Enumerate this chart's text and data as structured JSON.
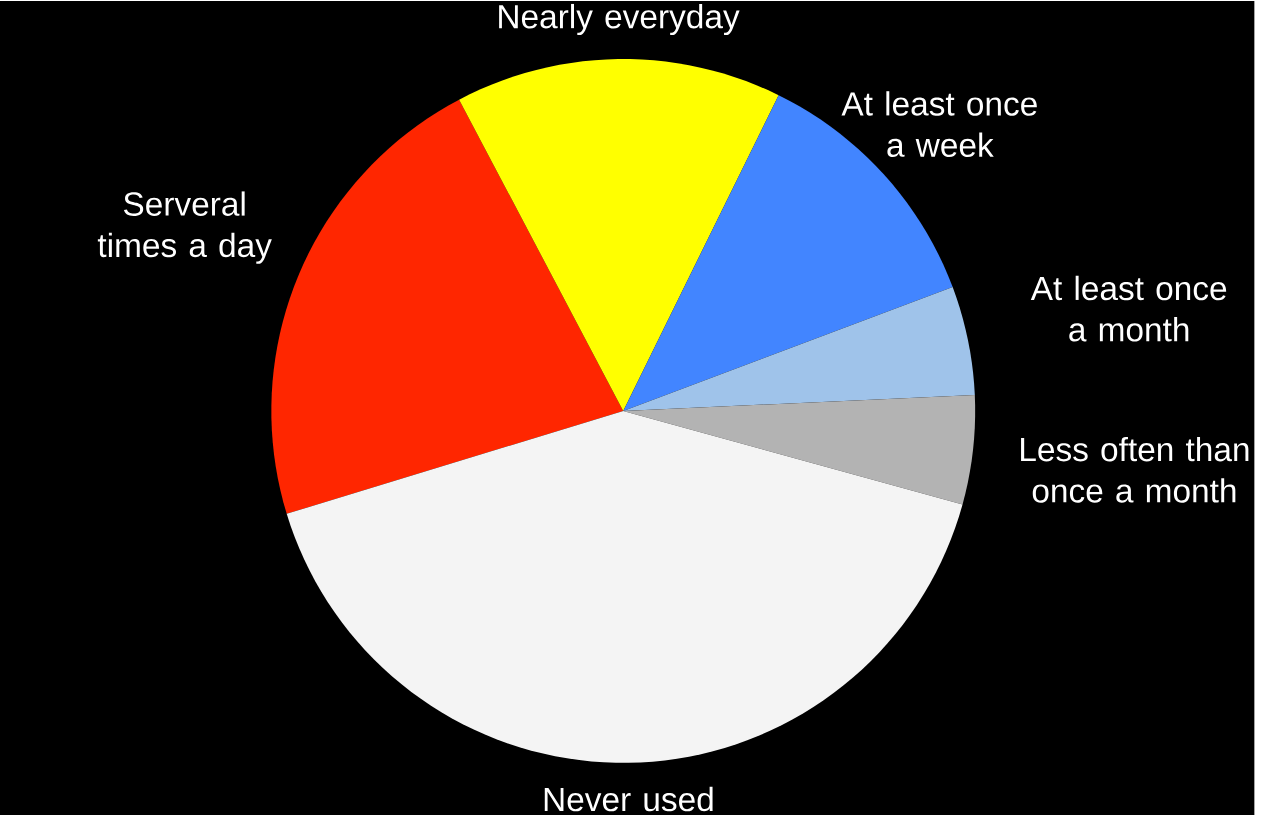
{
  "chart_data": {
    "type": "pie",
    "categories": [
      "Serveral times a day",
      "Nearly everyday",
      "At least once a week",
      "At least once a month",
      "Less often than once a month",
      "Never used"
    ],
    "values": [
      22,
      15,
      12,
      5,
      5,
      41
    ],
    "colors": [
      "#ff2600",
      "#ffff00",
      "#4285ff",
      "#9fc3ea",
      "#b3b3b3",
      "#f4f4f4"
    ]
  }
}
